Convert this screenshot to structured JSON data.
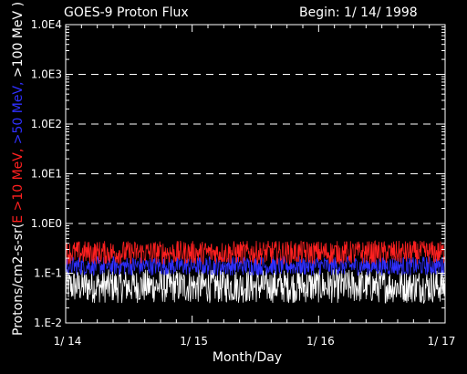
{
  "chart_data": {
    "type": "line",
    "title": "GOES-9 Proton Flux",
    "begin_label": "Begin: 1/ 14/ 1998",
    "xlabel": "Month/Day",
    "ylabel_parts": [
      {
        "text": "Protons/cm2-s-sr(",
        "color": "#ffffff"
      },
      {
        "text": "E >10 MeV, ",
        "color": "#ff2020"
      },
      {
        "text": ">50 MeV, ",
        "color": "#3030ff"
      },
      {
        "text": ">100 MeV )",
        "color": "#ffffff"
      }
    ],
    "y_scale": "log",
    "ylim": [
      0.01,
      10000
    ],
    "y_ticks": [
      "1.0E4",
      "1.0E3",
      "1.0E2",
      "1.0E1",
      "1.0E0",
      "1.E-1",
      "1.E-2"
    ],
    "x_ticks": [
      "1/ 14",
      "1/ 15",
      "1/ 16",
      "1/ 17"
    ],
    "xlim_days": [
      14,
      17
    ],
    "grid": "dashed horizontal at decades",
    "series": [
      {
        "name": "E >10 MeV",
        "color": "#ff2020",
        "typical_range": [
          0.15,
          0.45
        ]
      },
      {
        "name": ">50 MeV",
        "color": "#3030ff",
        "typical_range": [
          0.09,
          0.22
        ]
      },
      {
        "name": ">100 MeV",
        "color": "#ffffff",
        "typical_range": [
          0.025,
          0.12
        ]
      }
    ]
  }
}
